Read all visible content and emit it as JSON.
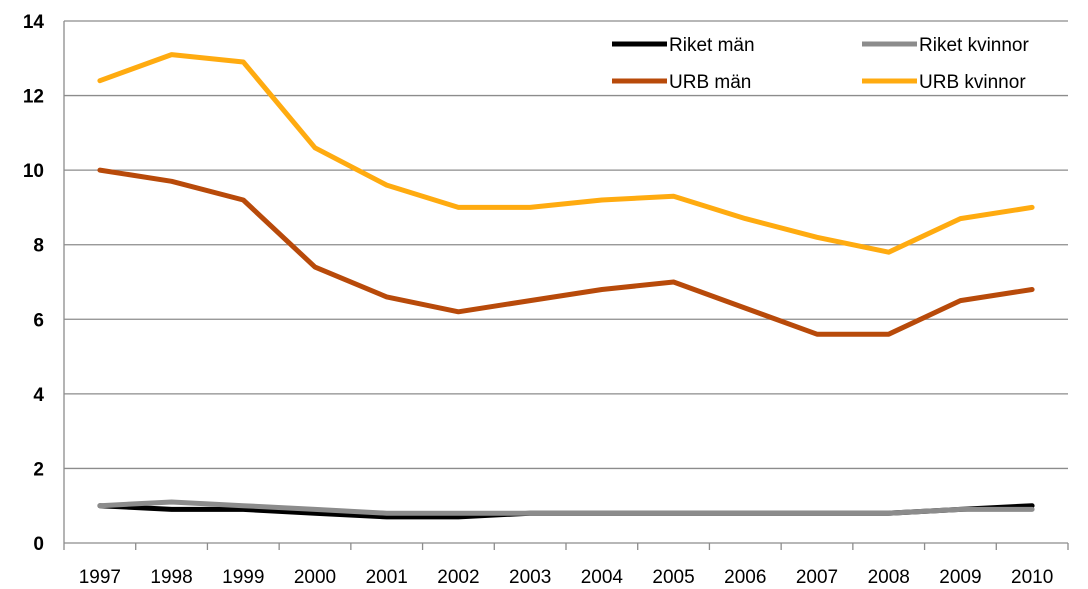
{
  "chart_data": {
    "type": "line",
    "title": "",
    "xlabel": "",
    "ylabel": "",
    "categories": [
      "1997",
      "1998",
      "1999",
      "2000",
      "2001",
      "2002",
      "2003",
      "2004",
      "2005",
      "2006",
      "2007",
      "2008",
      "2009",
      "2010"
    ],
    "ylim": [
      0,
      14
    ],
    "yticks": [
      0,
      2,
      4,
      6,
      8,
      10,
      12,
      14
    ],
    "grid": true,
    "legend_position": "top-right",
    "series": [
      {
        "name": "Riket män",
        "color": "#000000",
        "values": [
          1.0,
          0.9,
          0.9,
          0.8,
          0.7,
          0.7,
          0.8,
          0.8,
          0.8,
          0.8,
          0.8,
          0.8,
          0.9,
          1.0
        ]
      },
      {
        "name": "Riket kvinnor",
        "color": "#8c8c8c",
        "values": [
          1.0,
          1.1,
          1.0,
          0.9,
          0.8,
          0.8,
          0.8,
          0.8,
          0.8,
          0.8,
          0.8,
          0.8,
          0.9,
          0.9
        ]
      },
      {
        "name": "URB män",
        "color": "#b84a0a",
        "values": [
          10.0,
          9.7,
          9.2,
          7.4,
          6.6,
          6.2,
          6.5,
          6.8,
          7.0,
          6.3,
          5.6,
          5.6,
          6.5,
          6.8
        ]
      },
      {
        "name": "URB kvinnor",
        "color": "#ffab10",
        "values": [
          12.4,
          13.1,
          12.9,
          10.6,
          9.6,
          9.0,
          9.0,
          9.2,
          9.3,
          8.7,
          8.2,
          7.8,
          8.7,
          9.0
        ]
      }
    ]
  }
}
